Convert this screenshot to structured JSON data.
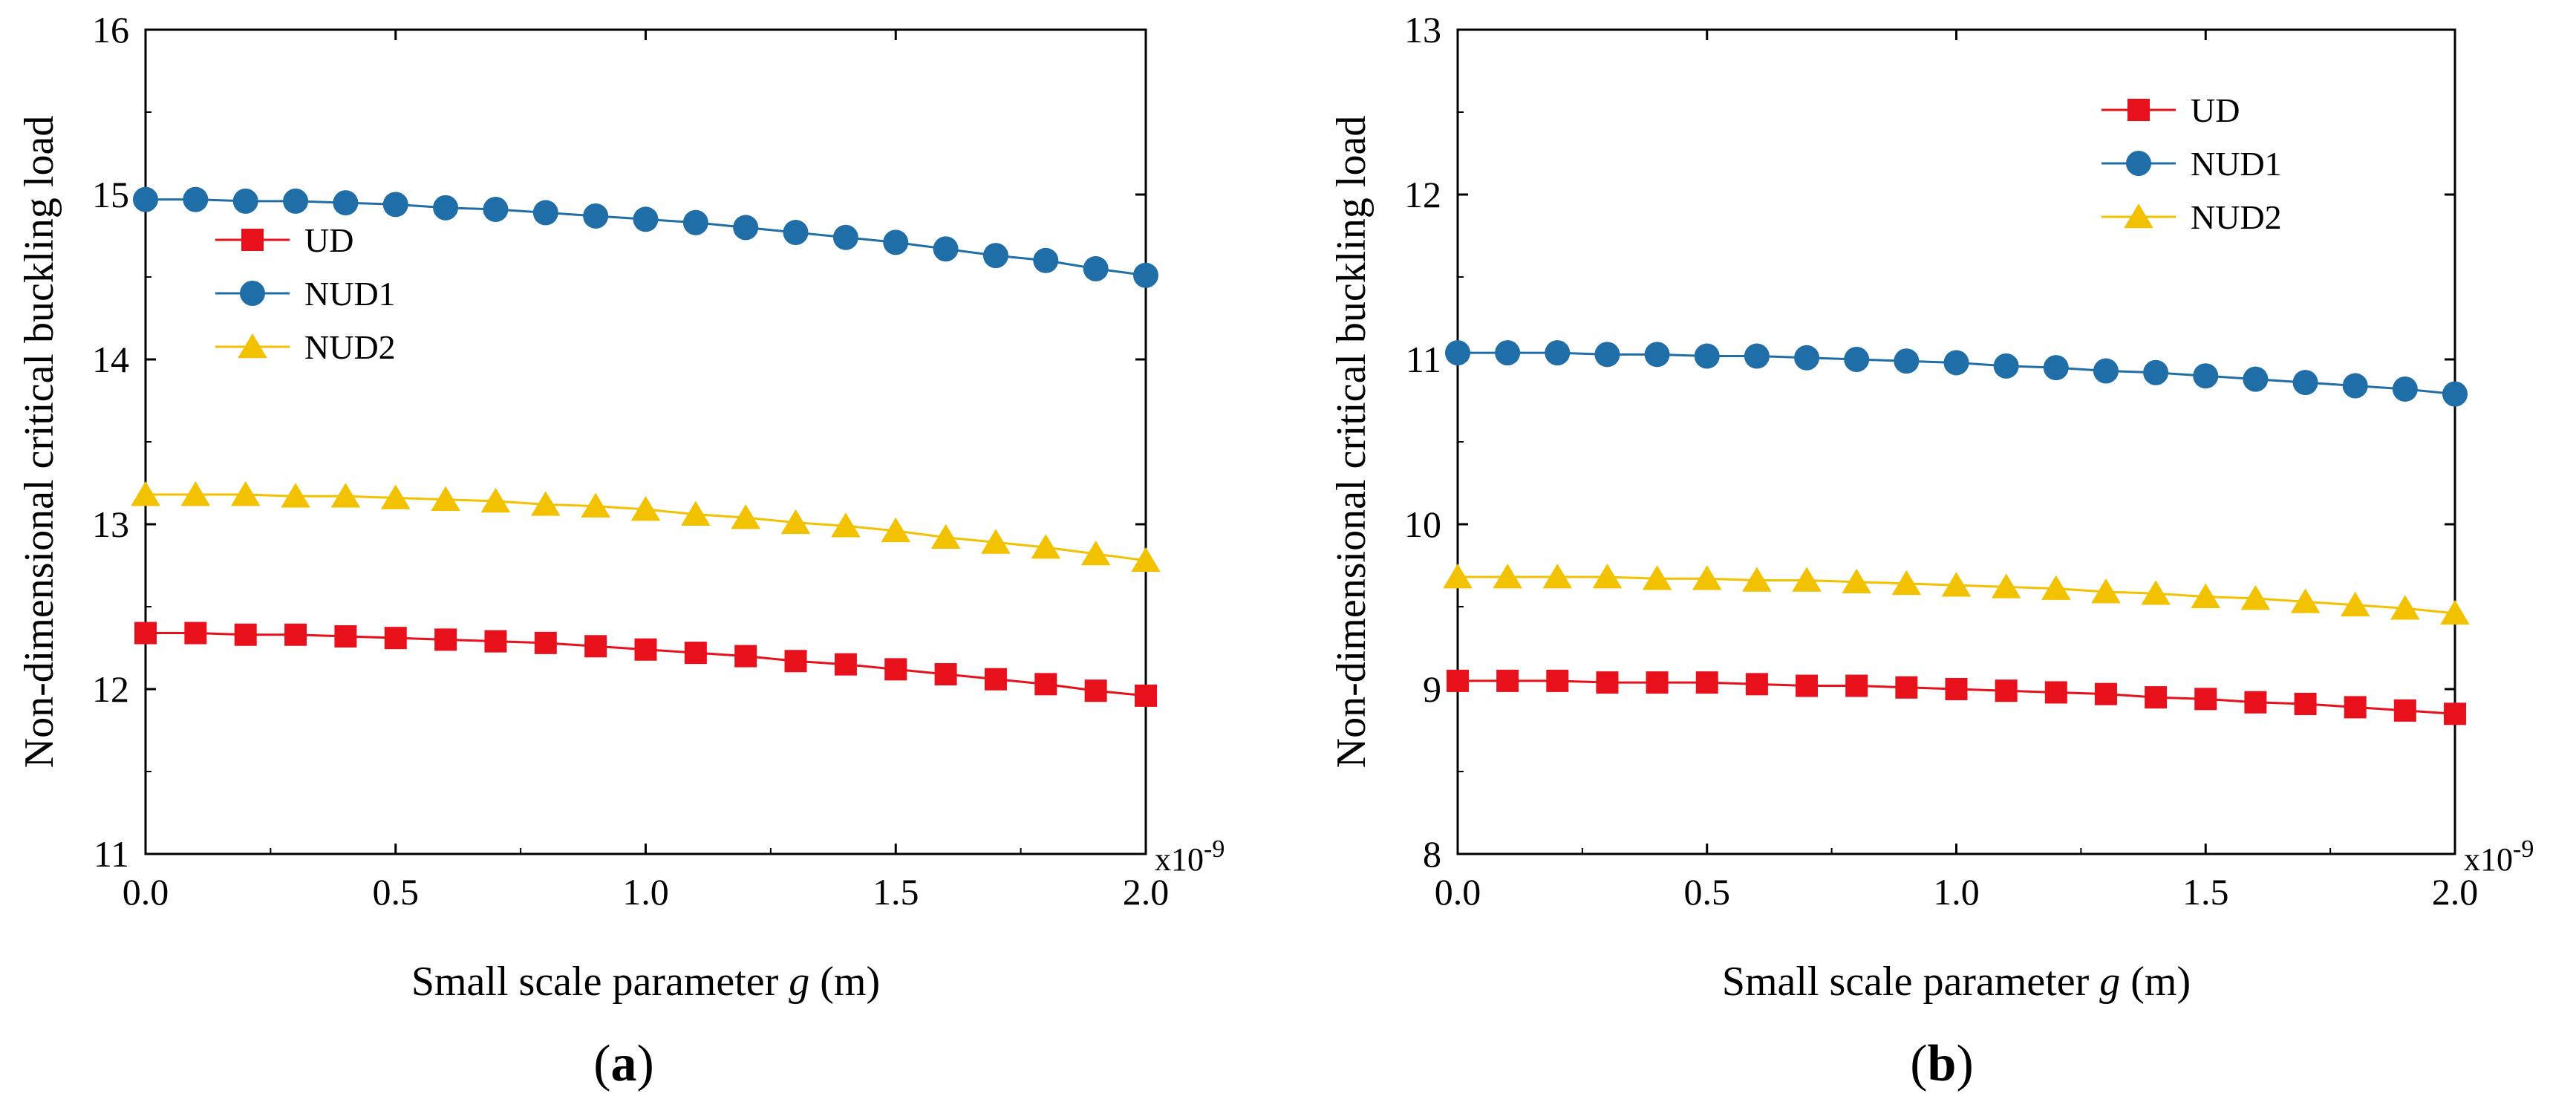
{
  "chart_data": [
    {
      "type": "line",
      "panel_label": "a",
      "xlabel_prefix": "Small scale parameter ",
      "xlabel_var": "g",
      "xlabel_suffix": " (m)",
      "ylabel": "Non-dimensional critical buckling load",
      "x_multiplier": "x10",
      "x_multiplier_exp": "-9",
      "xlim": [
        0,
        2.0
      ],
      "ylim": [
        11,
        16
      ],
      "xticks": [
        "0.0",
        "0.5",
        "1.0",
        "1.5",
        "2.0"
      ],
      "yticks": [
        "11",
        "12",
        "13",
        "14",
        "15",
        "16"
      ],
      "legend_position": "center-left",
      "x": [
        0,
        0.1,
        0.2,
        0.3,
        0.4,
        0.5,
        0.6,
        0.7,
        0.8,
        0.9,
        1.0,
        1.1,
        1.2,
        1.3,
        1.4,
        1.5,
        1.6,
        1.7,
        1.8,
        1.9,
        2.0
      ],
      "series": [
        {
          "name": "UD",
          "color": "#e8101b",
          "marker": "square",
          "values": [
            12.34,
            12.34,
            12.33,
            12.33,
            12.32,
            12.31,
            12.3,
            12.29,
            12.28,
            12.26,
            12.24,
            12.22,
            12.2,
            12.17,
            12.15,
            12.12,
            12.09,
            12.06,
            12.03,
            11.99,
            11.96
          ]
        },
        {
          "name": "NUD1",
          "color": "#1f6ea8",
          "marker": "circle",
          "values": [
            14.97,
            14.97,
            14.96,
            14.96,
            14.95,
            14.94,
            14.92,
            14.91,
            14.89,
            14.87,
            14.85,
            14.83,
            14.8,
            14.77,
            14.74,
            14.71,
            14.67,
            14.63,
            14.6,
            14.55,
            14.51
          ]
        },
        {
          "name": "NUD2",
          "color": "#f2c200",
          "marker": "triangle",
          "values": [
            13.18,
            13.18,
            13.18,
            13.17,
            13.17,
            13.16,
            13.15,
            13.14,
            13.12,
            13.11,
            13.09,
            13.06,
            13.04,
            13.01,
            12.99,
            12.96,
            12.92,
            12.89,
            12.86,
            12.82,
            12.78
          ]
        }
      ]
    },
    {
      "type": "line",
      "panel_label": "b",
      "xlabel_prefix": "Small scale parameter ",
      "xlabel_var": "g",
      "xlabel_suffix": " (m)",
      "ylabel": "Non-dimensional critical buckling load",
      "x_multiplier": "x10",
      "x_multiplier_exp": "-9",
      "xlim": [
        0,
        2.0
      ],
      "ylim": [
        8,
        13
      ],
      "xticks": [
        "0.0",
        "0.5",
        "1.0",
        "1.5",
        "2.0"
      ],
      "yticks": [
        "8",
        "9",
        "10",
        "11",
        "12",
        "13"
      ],
      "legend_position": "top-right",
      "x": [
        0,
        0.1,
        0.2,
        0.3,
        0.4,
        0.5,
        0.6,
        0.7,
        0.8,
        0.9,
        1.0,
        1.1,
        1.2,
        1.3,
        1.4,
        1.5,
        1.6,
        1.7,
        1.8,
        1.9,
        2.0
      ],
      "series": [
        {
          "name": "UD",
          "color": "#e8101b",
          "marker": "square",
          "values": [
            9.05,
            9.05,
            9.05,
            9.04,
            9.04,
            9.04,
            9.03,
            9.02,
            9.02,
            9.01,
            9.0,
            8.99,
            8.98,
            8.97,
            8.95,
            8.94,
            8.92,
            8.91,
            8.89,
            8.87,
            8.85
          ]
        },
        {
          "name": "NUD1",
          "color": "#1f6ea8",
          "marker": "circle",
          "values": [
            11.04,
            11.04,
            11.04,
            11.03,
            11.03,
            11.02,
            11.02,
            11.01,
            11.0,
            10.99,
            10.98,
            10.96,
            10.95,
            10.93,
            10.92,
            10.9,
            10.88,
            10.86,
            10.84,
            10.82,
            10.79
          ]
        },
        {
          "name": "NUD2",
          "color": "#f2c200",
          "marker": "triangle",
          "values": [
            9.68,
            9.68,
            9.68,
            9.68,
            9.67,
            9.67,
            9.66,
            9.66,
            9.65,
            9.64,
            9.63,
            9.62,
            9.61,
            9.59,
            9.58,
            9.56,
            9.55,
            9.53,
            9.51,
            9.49,
            9.46
          ]
        }
      ]
    }
  ]
}
